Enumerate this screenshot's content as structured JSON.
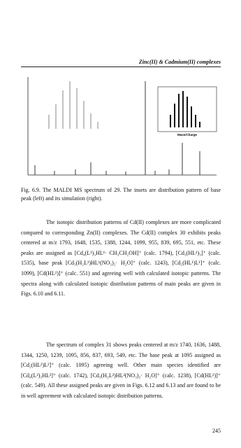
{
  "header": {
    "title": "Zinc(II) & Cadmium(II) complexes"
  },
  "figure": {
    "inset_label": "Mass/Charge",
    "caption": "Fig. 6.9. The MALDI MS spectrum of 29. The insets are distribution pattern of base peak (left) and its simulation (right)."
  },
  "paragraphs": [
    "The isotopic distribution patterns of Cd(II) complexes are more complicated compared to corresponding Zn(II) complexes. The Cd(II) complex 30 exhibits peaks centered at m/z 1793, 1648, 1535, 1388, 1244, 1099, 955, 839, 695, 551, etc. These peaks are assigned as [Cd₄(L¹)₃HL¹· CH₃CH₂OH]⁺ (calc. 1794), [Cd₃(HL¹)₃]⁺ (calc. 1535), base peak [Cd₃(H₂L¹)HL¹(NO₃)₂· H₂O]⁺ (calc. 1243), [Cd₂(HL¹)L¹]⁺ (calc. 1099), [Cd(HL¹)]⁺ (calc. 551) and agreeing well with calculated isotopic patterns. The spectra along with calculated isotopic distribution patterns of main peaks are given in Figs. 6.10 and 6.11.",
    "The spectrum of complex 31 shows peaks centered at m/z 1740, 1636, 1488, 1344, 1250, 1239, 1095, 856, 837, 693, 549, etc. The base peak at 1095 assigned as [Cd₂(HL²)L²]⁺ (calc. 1095) agreeing well. Other main species identified are [Cd₄(L²)₃HL²]⁺ (calc. 1742), [Cd₃(H₂L²)HL²(NO₃)₂· H₂O]⁺ (calc. 1238), [Cd(HL²)]⁺ (calc. 549). All these assigned peaks are given in Figs. 6.12 and 6.13 and are found to be in well agreement with calculated isotopic distribution patterns."
  ],
  "page_number": "245"
}
